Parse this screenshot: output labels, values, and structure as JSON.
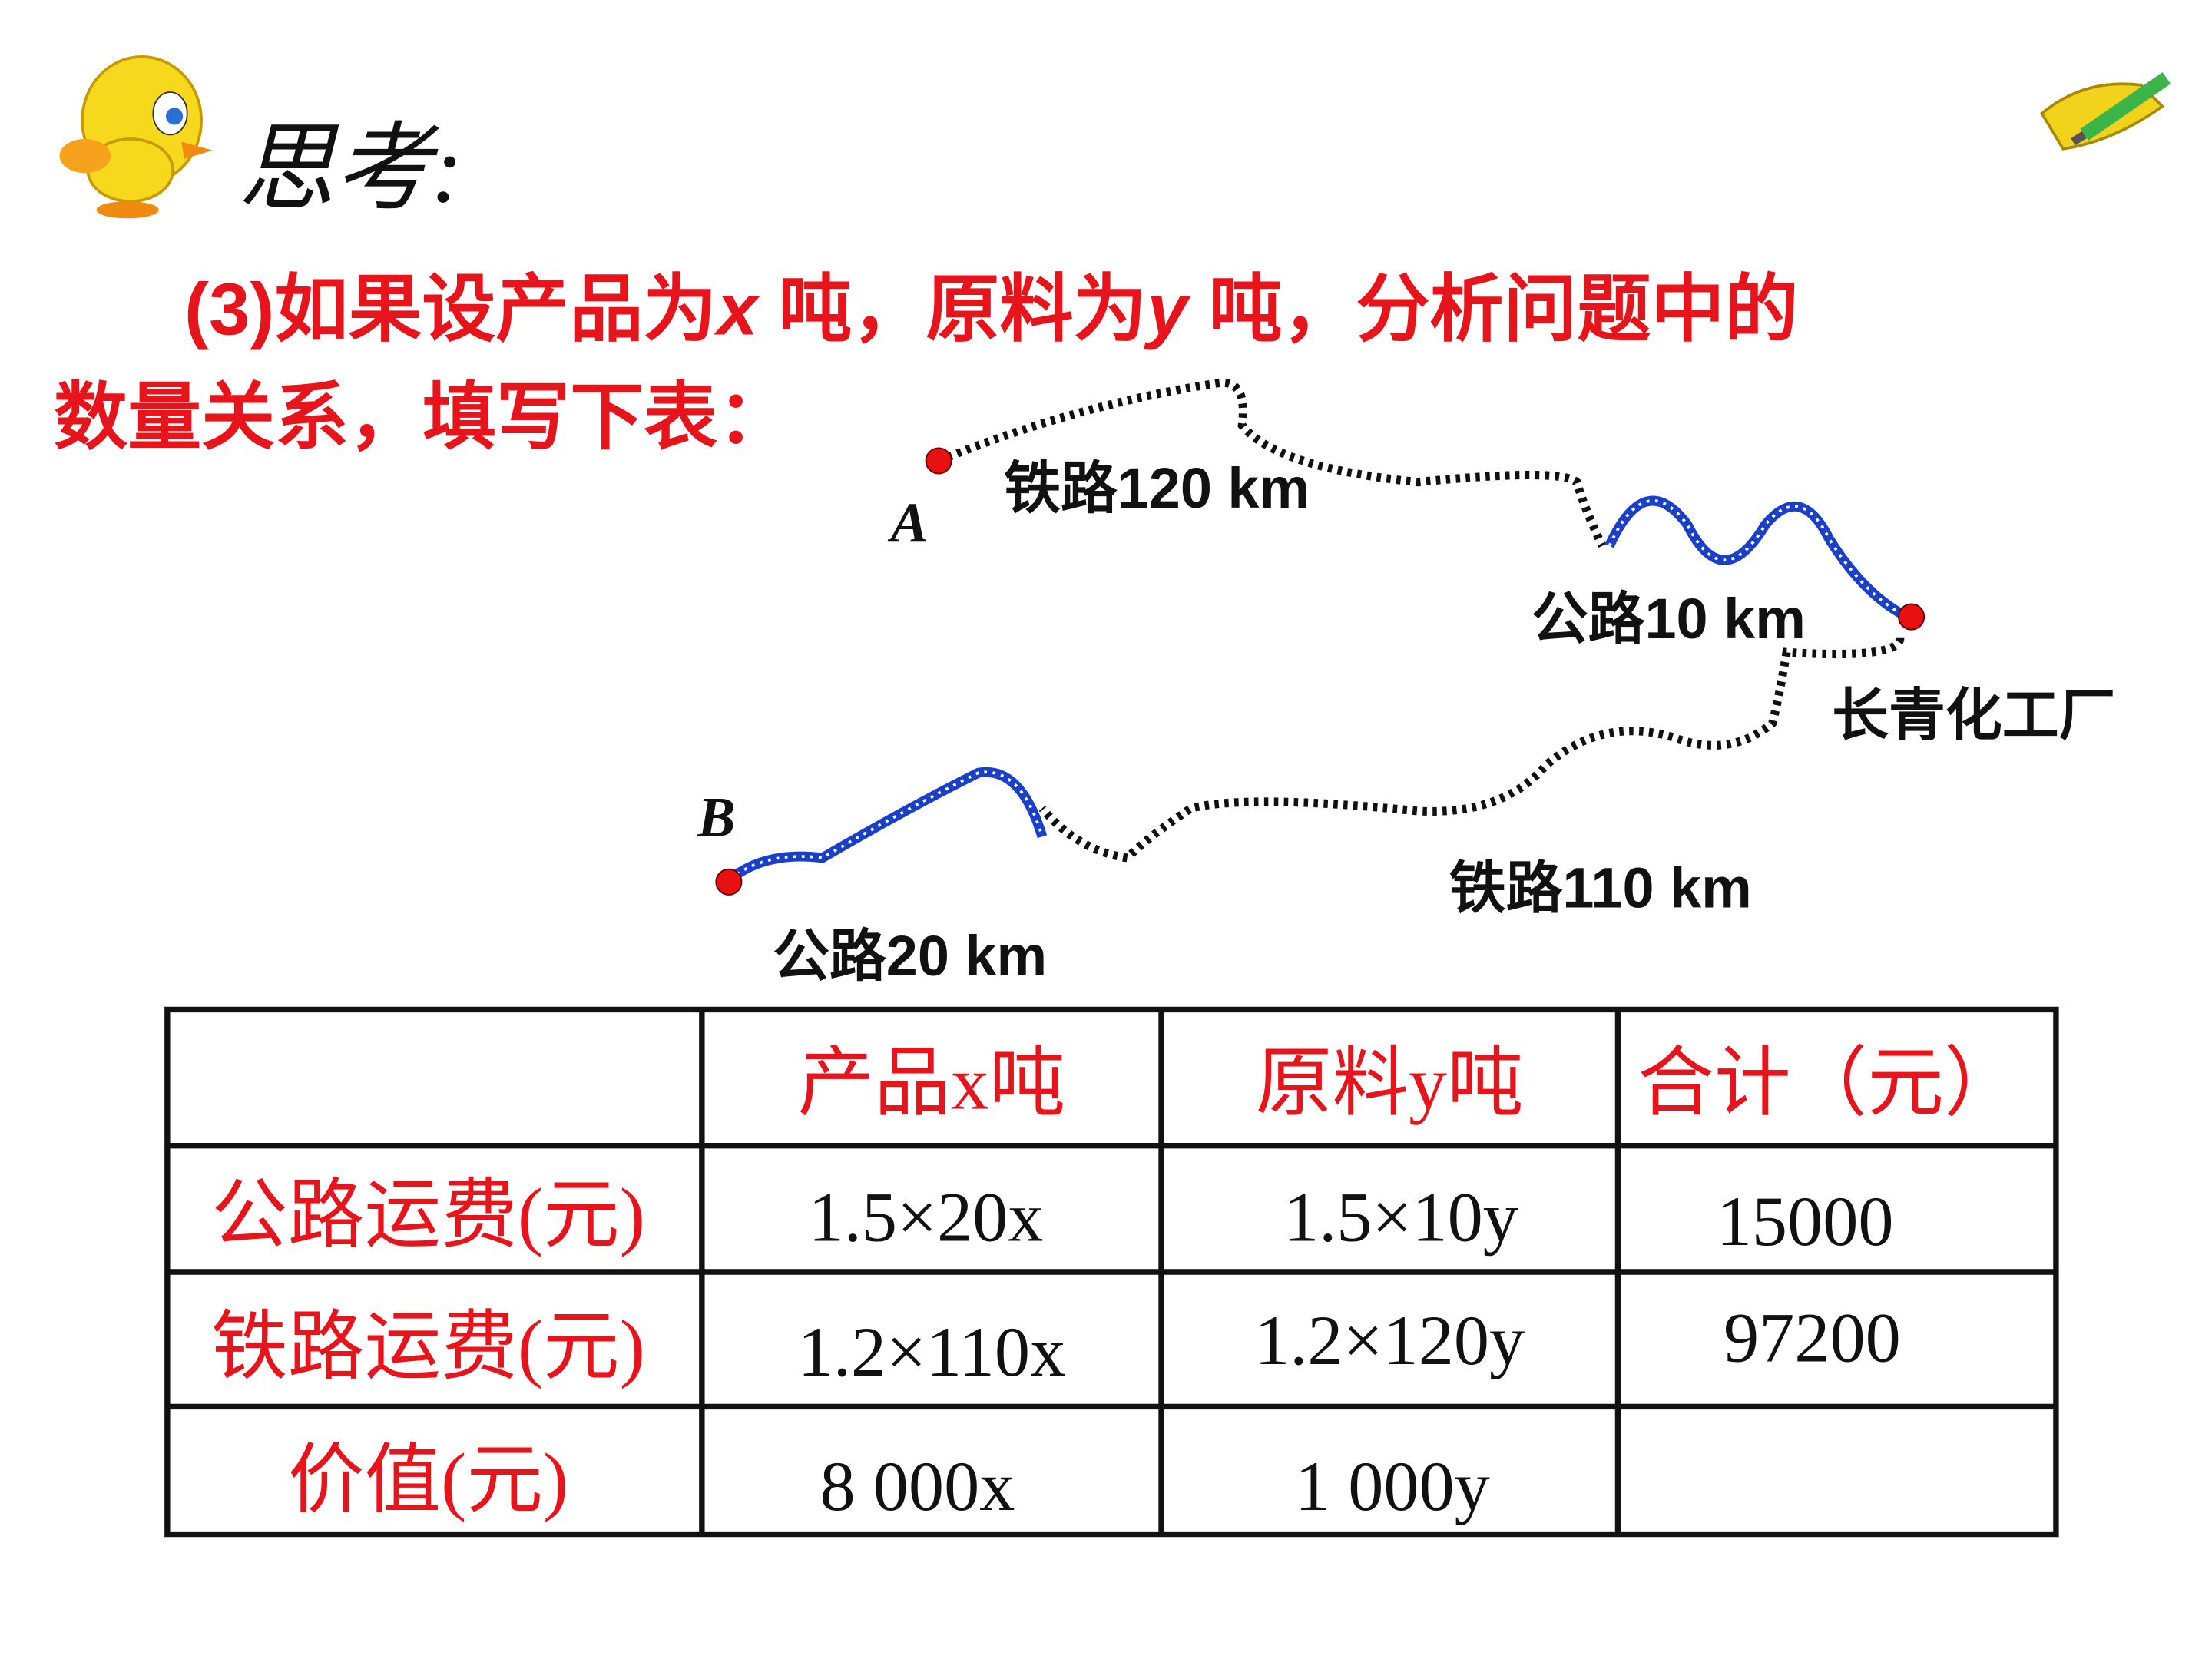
{
  "title": "思考:",
  "question": [
    "(3)如果设产品为",
    "x",
    " 吨，原料为",
    "y",
    " 吨，分析问题中的",
    "数量关系，填写下表："
  ],
  "map": {
    "point_a": "A",
    "point_b": "B",
    "rail_a": "铁路120 km",
    "road_a": "公路10 km",
    "factory": "长青化工厂",
    "rail_b": "铁路110 km",
    "road_b": "公路20 km"
  },
  "table": {
    "header": [
      "产品x吨",
      "原料y吨",
      "合计（元）"
    ],
    "rows": [
      {
        "label": "公路运费(元)",
        "cells": [
          "1.5×20x",
          "1.5×10y",
          "15000"
        ]
      },
      {
        "label": "铁路运费(元)",
        "cells": [
          "1.2×110x",
          "1.2×120y",
          "97200"
        ]
      },
      {
        "label": "价值(元)",
        "cells": [
          "8 000x",
          "1 000y"
        ]
      }
    ]
  }
}
